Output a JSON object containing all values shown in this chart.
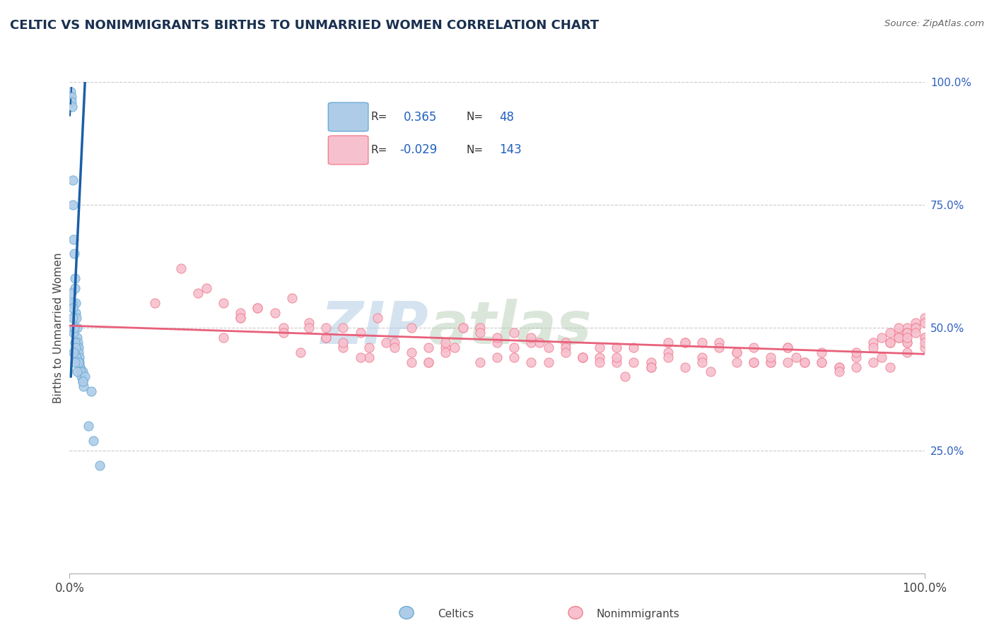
{
  "title": "CELTIC VS NONIMMIGRANTS BIRTHS TO UNMARRIED WOMEN CORRELATION CHART",
  "source_text": "Source: ZipAtlas.com",
  "ylabel": "Births to Unmarried Women",
  "xlim": [
    0,
    100
  ],
  "ylim": [
    0,
    100
  ],
  "ytick_labels": [
    "25.0%",
    "50.0%",
    "75.0%",
    "100.0%"
  ],
  "ytick_positions": [
    25,
    50,
    75,
    100
  ],
  "watermark_zip": "ZIP",
  "watermark_atlas": "atlas",
  "legend_r1": "0.365",
  "legend_n1": "48",
  "legend_r2": "-0.029",
  "legend_n2": "143",
  "celtics_color": "#aecce8",
  "celtics_edge": "#6aaad4",
  "nonimm_color": "#f7c0cf",
  "nonimm_edge": "#f08090",
  "blue_line_color": "#1a5fa8",
  "pink_line_color": "#e8607a",
  "title_color": "#1a3050",
  "legend_text_color": "#333333",
  "legend_val_color": "#2060c0",
  "right_tick_color": "#3060c0",
  "celtics_x": [
    0.15,
    0.18,
    0.22,
    0.28,
    0.35,
    0.42,
    0.5,
    0.55,
    0.6,
    0.65,
    0.7,
    0.75,
    0.8,
    0.85,
    0.9,
    0.95,
    1.0,
    1.05,
    1.1,
    1.15,
    1.2,
    1.3,
    1.4,
    1.5,
    1.6,
    0.3,
    0.4,
    0.5,
    0.6,
    0.8,
    1.0,
    1.2,
    1.5,
    0.2,
    0.35,
    0.55,
    0.75,
    1.0,
    1.3,
    1.8,
    2.2,
    2.8,
    3.5,
    0.45,
    0.6,
    0.9,
    1.5,
    2.5
  ],
  "celtics_y": [
    98,
    97,
    96,
    95,
    80,
    75,
    68,
    65,
    60,
    58,
    55,
    53,
    52,
    50,
    48,
    47,
    46,
    45,
    44,
    43,
    42,
    41,
    40,
    39,
    38,
    55,
    52,
    49,
    47,
    44,
    43,
    42,
    41,
    57,
    54,
    50,
    46,
    43,
    41,
    40,
    30,
    27,
    22,
    45,
    43,
    41,
    39,
    37
  ],
  "nonimm_x": [
    10,
    13,
    16,
    18,
    20,
    22,
    25,
    27,
    30,
    32,
    35,
    37,
    40,
    42,
    44,
    46,
    48,
    50,
    52,
    54,
    56,
    58,
    60,
    62,
    64,
    66,
    68,
    70,
    72,
    74,
    76,
    78,
    80,
    82,
    84,
    86,
    88,
    90,
    92,
    94,
    96,
    98,
    100,
    15,
    20,
    25,
    30,
    35,
    40,
    45,
    50,
    55,
    60,
    65,
    70,
    75,
    80,
    85,
    90,
    95,
    100,
    18,
    28,
    38,
    48,
    58,
    68,
    78,
    88,
    98,
    22,
    32,
    42,
    52,
    62,
    72,
    82,
    92,
    26,
    36,
    46,
    56,
    66,
    76,
    86,
    96,
    20,
    30,
    40,
    50,
    60,
    70,
    80,
    90,
    100,
    24,
    34,
    44,
    54,
    64,
    74,
    84,
    94,
    32,
    42,
    52,
    62,
    72,
    82,
    92,
    28,
    38,
    48,
    58,
    68,
    78,
    88,
    98,
    34,
    44,
    54,
    64,
    74,
    84,
    94,
    97,
    98,
    99,
    100,
    97,
    98,
    99,
    100,
    96,
    97,
    98,
    99,
    100,
    95,
    96,
    97,
    98,
    99
  ],
  "nonimm_y": [
    55,
    62,
    58,
    48,
    52,
    54,
    50,
    45,
    48,
    46,
    44,
    47,
    50,
    43,
    46,
    50,
    43,
    47,
    44,
    47,
    43,
    47,
    44,
    46,
    43,
    46,
    43,
    45,
    42,
    44,
    47,
    43,
    46,
    43,
    46,
    43,
    45,
    42,
    44,
    47,
    42,
    45,
    48,
    57,
    53,
    49,
    50,
    46,
    43,
    46,
    44,
    47,
    44,
    40,
    44,
    41,
    43,
    44,
    42,
    44,
    48,
    55,
    51,
    47,
    50,
    46,
    42,
    45,
    43,
    47,
    54,
    50,
    46,
    49,
    44,
    47,
    43,
    45,
    56,
    52,
    50,
    46,
    43,
    46,
    43,
    47,
    52,
    48,
    45,
    48,
    44,
    47,
    43,
    41,
    46,
    53,
    49,
    45,
    48,
    44,
    47,
    43,
    46,
    47,
    43,
    46,
    43,
    47,
    44,
    42,
    50,
    46,
    49,
    45,
    42,
    45,
    43,
    47,
    44,
    47,
    43,
    46,
    43,
    46,
    43,
    49,
    50,
    51,
    52,
    48,
    49,
    50,
    51,
    47,
    48,
    49,
    50,
    47,
    48,
    49,
    50,
    48,
    49
  ]
}
